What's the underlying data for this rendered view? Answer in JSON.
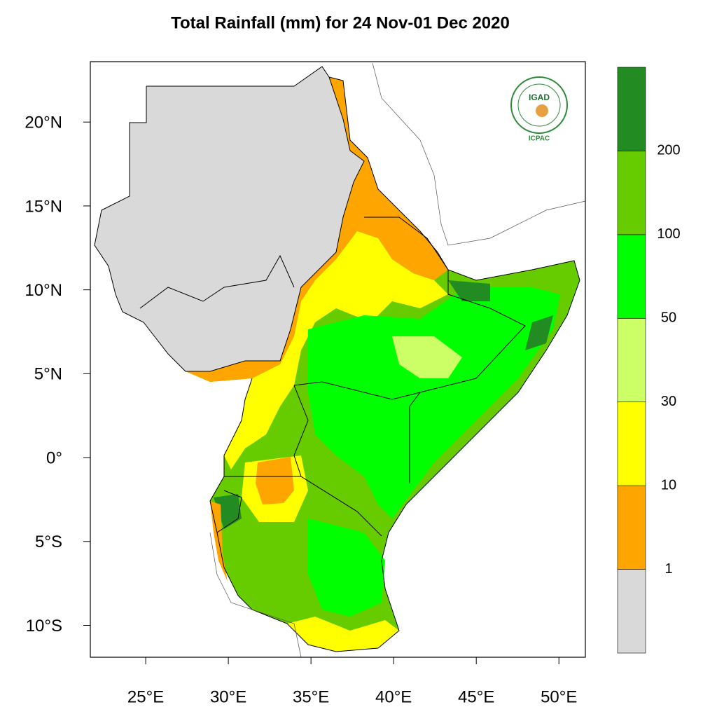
{
  "map": {
    "title": "Total Rainfall (mm) for 24 Nov-01 Dec 2020",
    "xlim": [
      21.65,
      51.6
    ],
    "ylim": [
      -11.9,
      23.6
    ],
    "xticks": [
      {
        "value": 25,
        "label": "25°E"
      },
      {
        "value": 30,
        "label": "30°E"
      },
      {
        "value": 35,
        "label": "35°E"
      },
      {
        "value": 40,
        "label": "40°E"
      },
      {
        "value": 45,
        "label": "45°E"
      },
      {
        "value": 50,
        "label": "50°E"
      }
    ],
    "yticks": [
      {
        "value": 20,
        "label": "20°N"
      },
      {
        "value": 15,
        "label": "15°N"
      },
      {
        "value": 10,
        "label": "10°N"
      },
      {
        "value": 5,
        "label": "5°N"
      },
      {
        "value": 0,
        "label": "0°"
      },
      {
        "value": -5,
        "label": "5°S"
      },
      {
        "value": -10,
        "label": "10°S"
      }
    ],
    "colorbar": {
      "levels": [
        1,
        10,
        30,
        50,
        100,
        200
      ],
      "colors": [
        "#d9d9d9",
        "#ffa500",
        "#ffff00",
        "#ccff66",
        "#00ff00",
        "#66cc00",
        "#228b22"
      ]
    },
    "logo": {
      "name": "IGAD",
      "caption": "ICPAC"
    }
  }
}
